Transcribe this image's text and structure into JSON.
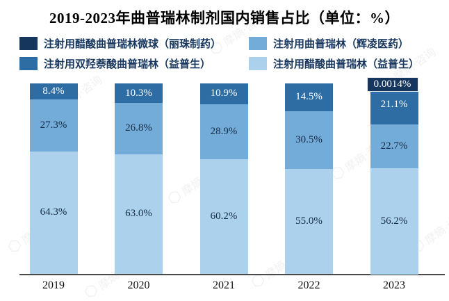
{
  "watermark": {
    "text": "摩熵·咨询"
  },
  "chart_data": {
    "type": "bar",
    "stacked": true,
    "title": "2019-2023年曲普瑞林制剂国内销售占比（单位：%）",
    "unit": "%",
    "categories": [
      "2019",
      "2020",
      "2021",
      "2022",
      "2023"
    ],
    "series": [
      {
        "name": "注射用醋酸曲普瑞林微球（丽珠制药）",
        "color": "#17365D",
        "label_color": "#ffffff",
        "values": [
          0,
          0,
          0,
          0,
          0.0014
        ],
        "labels": [
          "",
          "",
          "",
          "",
          "0.0014%"
        ]
      },
      {
        "name": "注射用双羟萘酸曲普瑞林（益普生）",
        "color": "#2E6DA4",
        "label_color": "#ffffff",
        "values": [
          8.4,
          10.3,
          10.9,
          14.5,
          21.1
        ],
        "labels": [
          "8.4%",
          "10.3%",
          "10.9%",
          "14.5%",
          "21.1%"
        ]
      },
      {
        "name": "注射用曲普瑞林（辉凌医药）",
        "color": "#74ACD9",
        "label_color": "#152B45",
        "values": [
          27.3,
          26.8,
          28.9,
          30.5,
          22.7
        ],
        "labels": [
          "27.3%",
          "26.8%",
          "28.9%",
          "30.5%",
          "22.7%"
        ]
      },
      {
        "name": "注射用醋酸曲普瑞林（益普生）",
        "color": "#ACD1EC",
        "label_color": "#152B45",
        "values": [
          64.3,
          63.0,
          60.2,
          55.0,
          56.2
        ],
        "labels": [
          "64.3%",
          "63.0%",
          "60.2%",
          "55.0%",
          "56.2%"
        ]
      }
    ],
    "legend_order": [
      0,
      2,
      1,
      3
    ],
    "ylim": [
      0,
      100
    ],
    "legend_position": "top",
    "grid": false,
    "colors": {
      "axis": "#4a4a4a",
      "title": "#000000",
      "legend_text": "#17375E"
    }
  }
}
